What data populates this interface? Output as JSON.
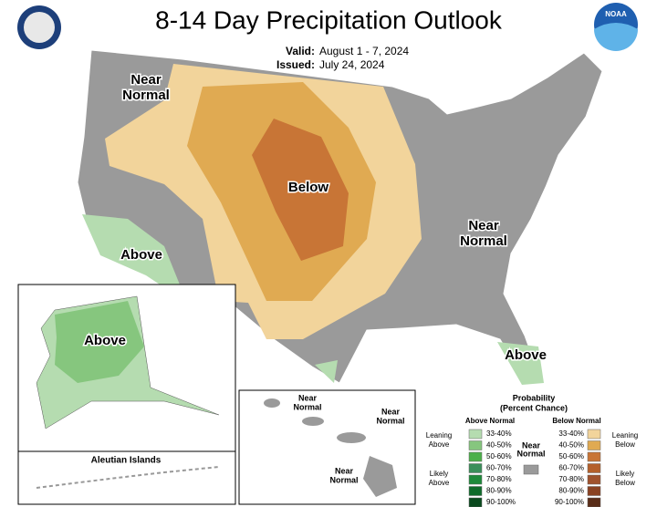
{
  "header": {
    "title": "8-14 Day Precipitation Outlook",
    "valid_label": "Valid:",
    "valid": "August 1 - 7, 2024",
    "issued_label": "Issued:",
    "issued": "July 24, 2024",
    "logo": "NOAA"
  },
  "map_labels": [
    {
      "lines": [
        "Near",
        "Normal"
      ]
    },
    {
      "lines": [
        "Below"
      ]
    },
    {
      "lines": [
        "Near",
        "Normal"
      ]
    },
    {
      "lines": [
        "Above"
      ]
    },
    {
      "lines": [
        "Above"
      ]
    },
    {
      "lines": [
        "Above"
      ]
    }
  ],
  "aleutian": "Aleutian Islands",
  "hawaii_labels": [
    {
      "lines": [
        "Near",
        "Normal"
      ]
    },
    {
      "lines": [
        "Near",
        "Normal"
      ]
    },
    {
      "lines": [
        "Near",
        "Normal"
      ]
    }
  ],
  "legend": {
    "title": [
      "Probability",
      "(Percent Chance)"
    ],
    "above_heading": "Above Normal",
    "below_heading": "Below Normal",
    "near": {
      "lines": [
        "Near",
        "Normal"
      ],
      "color": "#9a9a9a"
    },
    "leaning_above": [
      "Leaning",
      "Above"
    ],
    "likely_above": [
      "Likely",
      "Above"
    ],
    "leaning_below": [
      "Leaning",
      "Below"
    ],
    "likely_below": [
      "Likely",
      "Below"
    ],
    "above": [
      {
        "label": "33-40%",
        "color": "#b5dcb0"
      },
      {
        "label": "40-50%",
        "color": "#86c67e"
      },
      {
        "label": "50-60%",
        "color": "#4cb04a"
      },
      {
        "label": "60-70%",
        "color": "#3a8f5a"
      },
      {
        "label": "70-80%",
        "color": "#1e8a3a"
      },
      {
        "label": "80-90%",
        "color": "#0f6b2a"
      },
      {
        "label": "90-100%",
        "color": "#0a4a1e"
      }
    ],
    "below": [
      {
        "label": "33-40%",
        "color": "#f2d49b"
      },
      {
        "label": "40-50%",
        "color": "#e0aa52"
      },
      {
        "label": "50-60%",
        "color": "#c87536"
      },
      {
        "label": "60-70%",
        "color": "#b4602b"
      },
      {
        "label": "70-80%",
        "color": "#a0522d"
      },
      {
        "label": "80-90%",
        "color": "#8a4222"
      },
      {
        "label": "90-100%",
        "color": "#5a2d18"
      }
    ]
  }
}
